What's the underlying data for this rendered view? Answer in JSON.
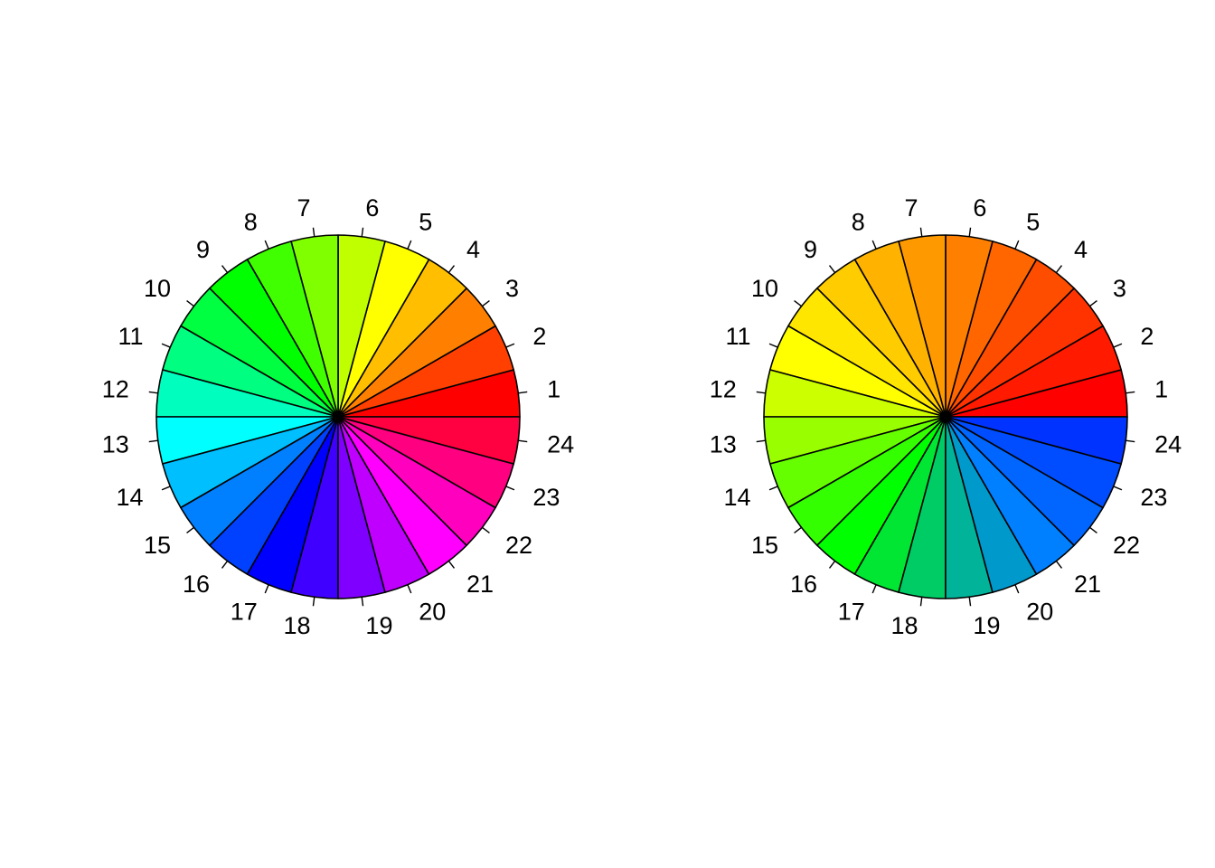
{
  "chart_data": [
    {
      "type": "pie",
      "title": "",
      "direction": "counterclockwise",
      "start_angle_deg": 0,
      "labels": [
        "1",
        "2",
        "3",
        "4",
        "5",
        "6",
        "7",
        "8",
        "9",
        "10",
        "11",
        "12",
        "13",
        "14",
        "15",
        "16",
        "17",
        "18",
        "19",
        "20",
        "21",
        "22",
        "23",
        "24"
      ],
      "values": [
        1,
        1,
        1,
        1,
        1,
        1,
        1,
        1,
        1,
        1,
        1,
        1,
        1,
        1,
        1,
        1,
        1,
        1,
        1,
        1,
        1,
        1,
        1,
        1
      ],
      "colors": [
        "#FF0000",
        "#FF4000",
        "#FF8000",
        "#FFBF00",
        "#FFFF00",
        "#BFFF00",
        "#80FF00",
        "#40FF00",
        "#00FF00",
        "#00FF40",
        "#00FF80",
        "#00FFBF",
        "#00FFFF",
        "#00BFFF",
        "#0080FF",
        "#0040FF",
        "#0000FF",
        "#4000FF",
        "#8000FF",
        "#BF00FF",
        "#FF00FF",
        "#FF00BF",
        "#FF0080",
        "#FF0040"
      ]
    },
    {
      "type": "pie",
      "title": "",
      "direction": "counterclockwise",
      "start_angle_deg": 0,
      "labels": [
        "1",
        "2",
        "3",
        "4",
        "5",
        "6",
        "7",
        "8",
        "9",
        "10",
        "11",
        "12",
        "13",
        "14",
        "15",
        "16",
        "17",
        "18",
        "19",
        "20",
        "21",
        "22",
        "23",
        "24"
      ],
      "values": [
        1,
        1,
        1,
        1,
        1,
        1,
        1,
        1,
        1,
        1,
        1,
        1,
        1,
        1,
        1,
        1,
        1,
        1,
        1,
        1,
        1,
        1,
        1,
        1
      ],
      "colors": [
        "#FF0000",
        "#FF1A00",
        "#FF3300",
        "#FF4D00",
        "#FF6600",
        "#FF8000",
        "#FF9900",
        "#FFB300",
        "#FFCC00",
        "#FFE600",
        "#FFFF00",
        "#CCFF00",
        "#99FF00",
        "#66FF00",
        "#33FF00",
        "#00FF00",
        "#00E633",
        "#00CC66",
        "#00B399",
        "#0099CC",
        "#0080FF",
        "#0066FF",
        "#004DFF",
        "#0033FF"
      ]
    }
  ]
}
